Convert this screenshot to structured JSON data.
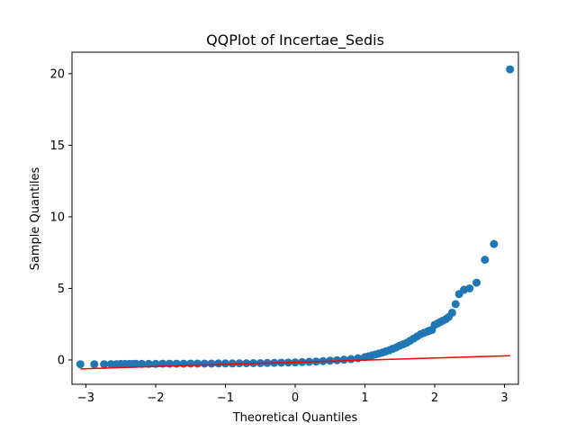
{
  "chart_data": {
    "type": "scatter",
    "title": "QQPlot of Incertae_Sedis",
    "xlabel": "Theoretical Quantiles",
    "ylabel": "Sample Quantiles",
    "xlim": [
      -3.2,
      3.2
    ],
    "ylim": [
      -1.7,
      21.5
    ],
    "x_ticks": [
      -3,
      -2,
      -1,
      0,
      1,
      2,
      3
    ],
    "y_ticks": [
      0,
      5,
      10,
      15,
      20
    ],
    "grid": false,
    "marker_color": "#1f77b4",
    "line_color": "#ff0000",
    "reference_line": {
      "x": [
        -3.08,
        3.08
      ],
      "y": [
        -0.62,
        0.3
      ]
    },
    "points": {
      "x": [
        -3.08,
        -2.88,
        -2.74,
        -2.64,
        -2.56,
        -2.5,
        -2.44,
        -2.38,
        -2.33,
        -2.28,
        -2.2,
        -2.1,
        -2.0,
        -1.9,
        -1.8,
        -1.7,
        -1.6,
        -1.5,
        -1.4,
        -1.3,
        -1.2,
        -1.1,
        -1.0,
        -0.9,
        -0.8,
        -0.7,
        -0.6,
        -0.5,
        -0.4,
        -0.3,
        -0.2,
        -0.1,
        0.0,
        0.1,
        0.2,
        0.3,
        0.4,
        0.5,
        0.6,
        0.7,
        0.8,
        0.9,
        1.0,
        1.05,
        1.1,
        1.15,
        1.2,
        1.25,
        1.3,
        1.35,
        1.4,
        1.45,
        1.5,
        1.55,
        1.6,
        1.65,
        1.7,
        1.75,
        1.8,
        1.85,
        1.9,
        1.93,
        1.96,
        2.0,
        2.04,
        2.08,
        2.12,
        2.16,
        2.2,
        2.25,
        2.3,
        2.35,
        2.42,
        2.5,
        2.6,
        2.72,
        2.85,
        3.08
      ],
      "y": [
        -0.3,
        -0.3,
        -0.3,
        -0.29,
        -0.29,
        -0.28,
        -0.28,
        -0.28,
        -0.28,
        -0.27,
        -0.27,
        -0.27,
        -0.27,
        -0.26,
        -0.26,
        -0.26,
        -0.26,
        -0.25,
        -0.25,
        -0.25,
        -0.25,
        -0.24,
        -0.24,
        -0.24,
        -0.23,
        -0.23,
        -0.22,
        -0.22,
        -0.21,
        -0.2,
        -0.19,
        -0.18,
        -0.17,
        -0.15,
        -0.13,
        -0.11,
        -0.08,
        -0.05,
        -0.02,
        0.02,
        0.06,
        0.12,
        0.2,
        0.26,
        0.32,
        0.38,
        0.45,
        0.52,
        0.6,
        0.68,
        0.78,
        0.88,
        1.0,
        1.1,
        1.2,
        1.35,
        1.5,
        1.65,
        1.8,
        1.9,
        2.0,
        2.05,
        2.1,
        2.45,
        2.55,
        2.65,
        2.75,
        2.85,
        3.0,
        3.3,
        3.9,
        4.6,
        4.9,
        5.0,
        5.4,
        7.0,
        8.1,
        20.3
      ]
    }
  }
}
